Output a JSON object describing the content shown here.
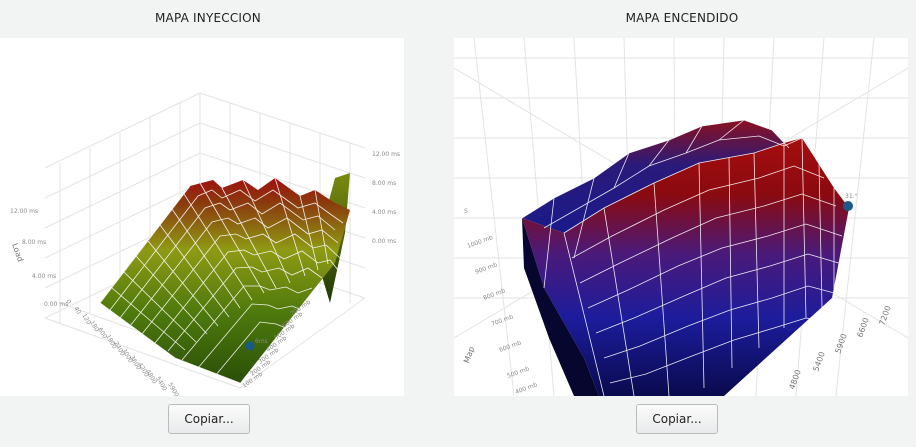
{
  "left_panel": {
    "title": "MAPA INYECCION",
    "copy_label": "Copiar...",
    "axis_label": "Load",
    "left_ticks": [
      "12.00 ms",
      "8.00 ms",
      "4.00 ms",
      "0.00 ms"
    ],
    "right_ticks": [
      "12.00 ms",
      "8.00 ms",
      "4.00 ms",
      "0.00 ms"
    ],
    "rpm_ticks": [
      "0",
      "40",
      "120",
      "180",
      "600",
      "1800",
      "2400",
      "3000",
      "3600",
      "4200",
      "4800",
      "5400",
      "5900"
    ],
    "map_ticks": [
      "700 mb",
      "600 mb",
      "500 mb",
      "400 mb",
      "300 mb",
      "200 mb",
      "100 mb"
    ],
    "marker_label": "6ms",
    "marker_color": "#1a5a8a"
  },
  "right_panel": {
    "title": "MAPA ENCENDIDO",
    "copy_label": "Copiar...",
    "axis_label": "Map",
    "map_ticks": [
      "1000 mb",
      "900 mb",
      "800 mb",
      "700 mb",
      "600 mb",
      "500 mb",
      "400 mb"
    ],
    "rpm_ticks": [
      "4800",
      "5400",
      "5900",
      "6600",
      "7200"
    ],
    "top_tick": "S",
    "marker_label": "31.°",
    "marker_color": "#1a5a8a"
  },
  "colors": {
    "window_bg": "#f2f3f3",
    "plot_bg": "#ffffff",
    "inj_low": "#2f5a0a",
    "inj_mid": "#8c9a14",
    "inj_high": "#a01010",
    "ign_low": "#0a0a4a",
    "ign_mid": "#1f1fa0",
    "ign_high": "#a01010"
  }
}
